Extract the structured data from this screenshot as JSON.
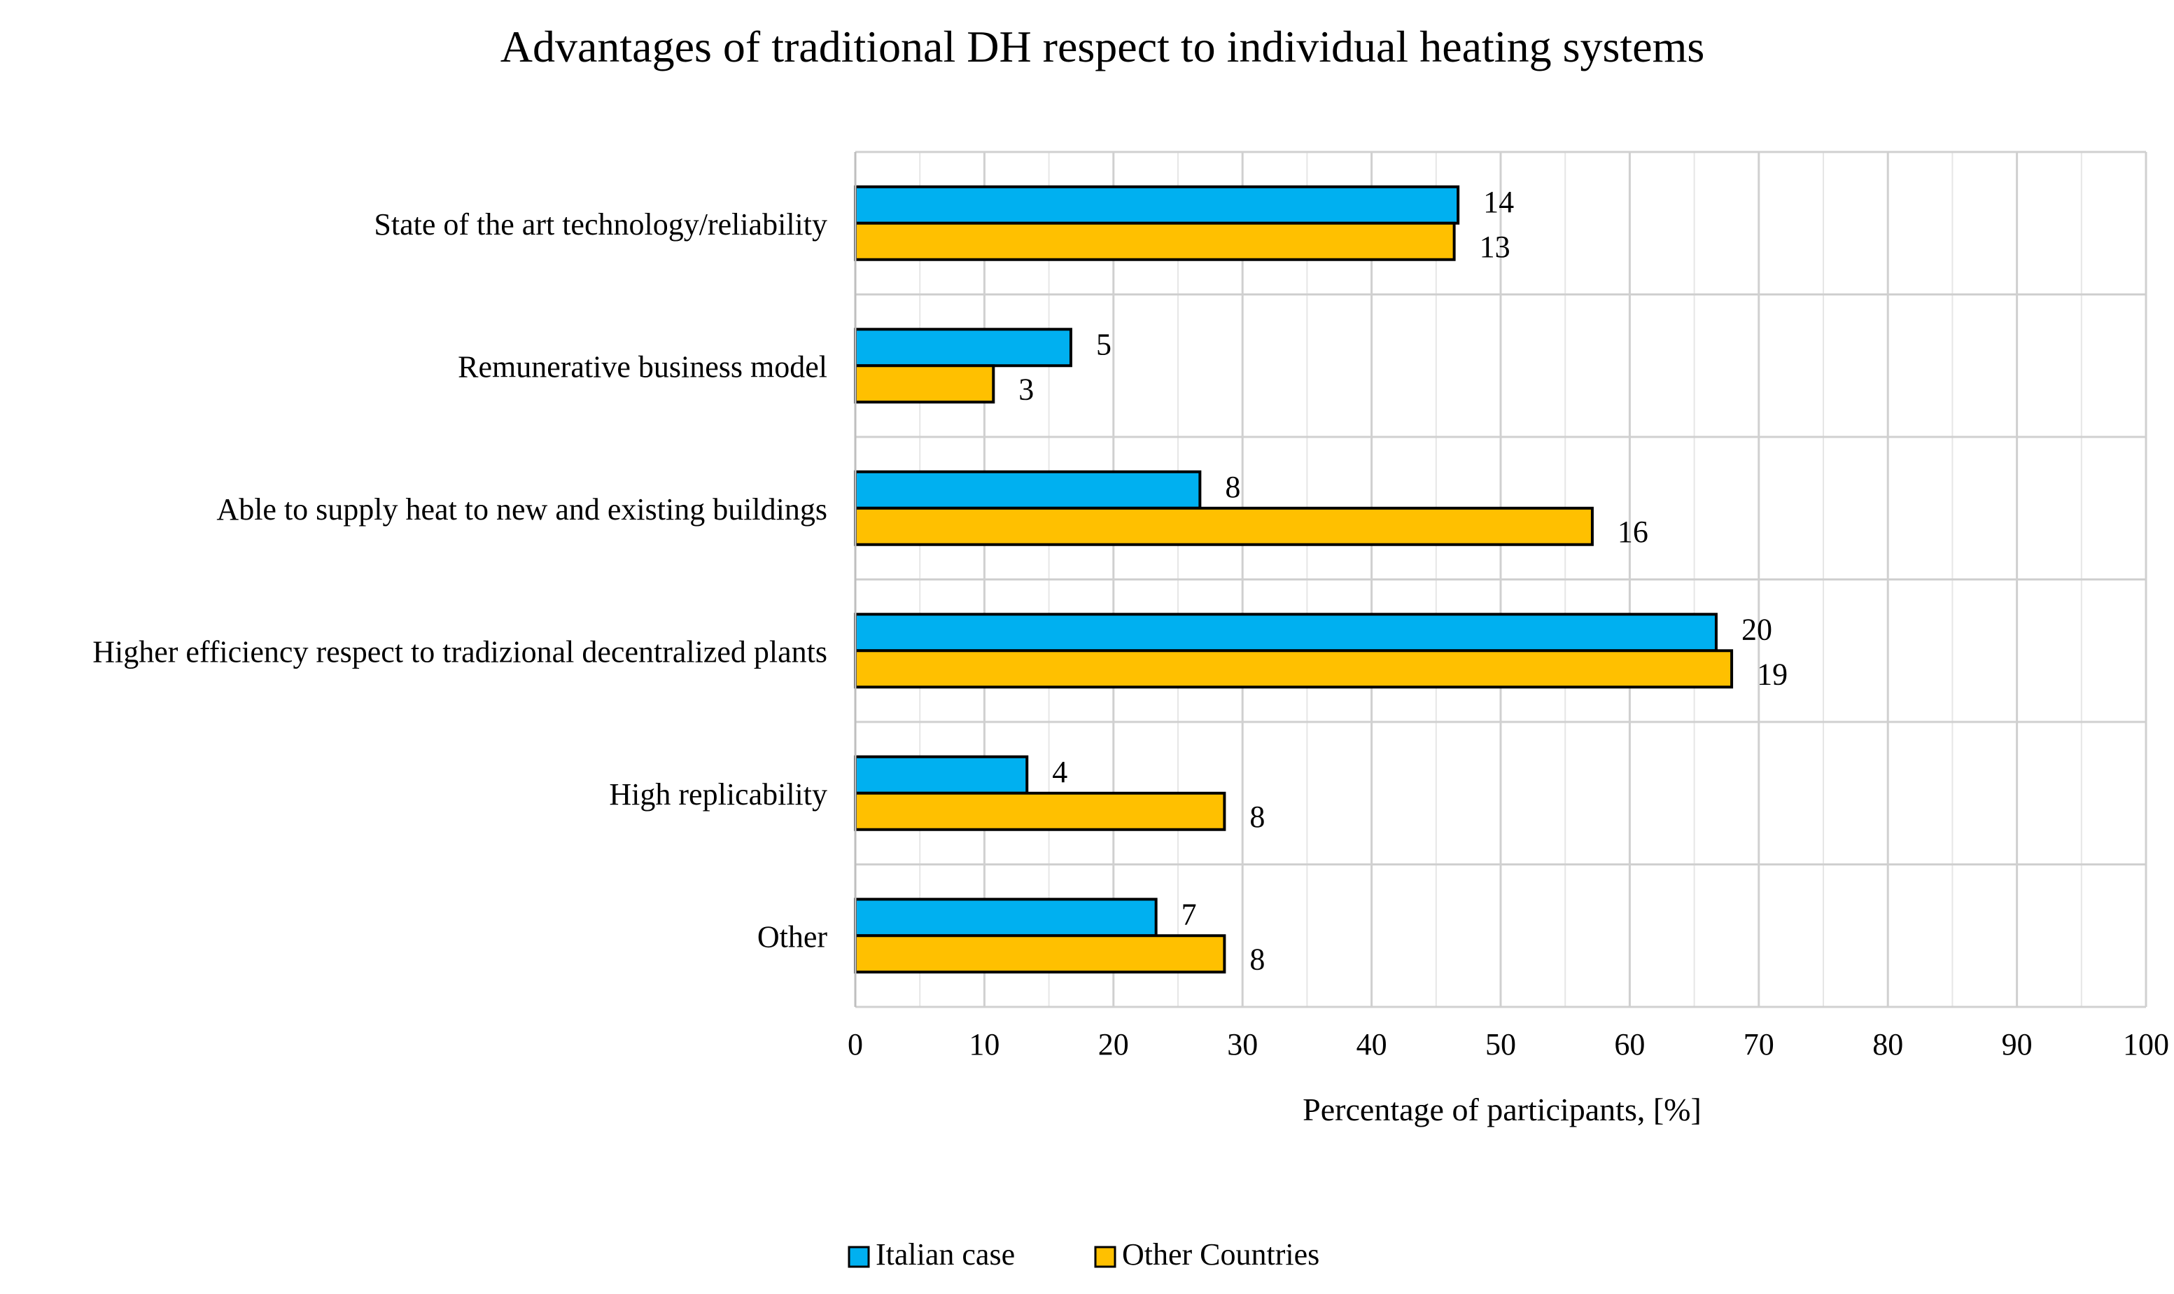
{
  "chart_data": {
    "type": "bar",
    "orientation": "horizontal",
    "title": "Advantages of traditional DH respect to individual heating systems",
    "xlabel": "Percentage of participants, [%]",
    "ylabel": "",
    "xlim": [
      0,
      100
    ],
    "xticks": [
      "0",
      "10",
      "20",
      "30",
      "40",
      "50",
      "60",
      "70",
      "80",
      "90",
      "100"
    ],
    "grid": true,
    "legend_position": "bottom",
    "categories": [
      "State of the art technology/reliability",
      "Remunerative business model",
      "Able to supply heat to new and existing buildings",
      "Higher efficiency respect to tradizional decentralized plants",
      "High replicability",
      "Other"
    ],
    "series": [
      {
        "name": "Italian case",
        "color": "#00B0F0",
        "values": [
          46.7,
          16.7,
          26.7,
          66.7,
          13.3,
          23.3
        ],
        "labels": [
          "14",
          "5",
          "8",
          "20",
          "4",
          "7"
        ]
      },
      {
        "name": "Other Countries",
        "color": "#FFC000",
        "values": [
          46.4,
          10.7,
          57.1,
          67.9,
          28.6,
          28.6
        ],
        "labels": [
          "13",
          "3",
          "16",
          "19",
          "8",
          "8"
        ]
      }
    ]
  }
}
